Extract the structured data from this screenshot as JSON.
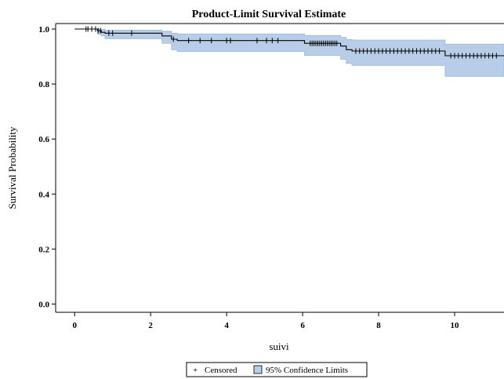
{
  "chart_data": {
    "type": "line",
    "title": "Product-Limit Survival Estimate",
    "xlabel": "suivi",
    "ylabel": "Survival Probability",
    "xlim": [
      -0.5,
      11.3
    ],
    "ylim": [
      -0.03,
      1.02
    ],
    "xticks": [
      "0",
      "2",
      "4",
      "6",
      "8",
      "10"
    ],
    "yticks": [
      "0.0",
      "0.2",
      "0.4",
      "0.6",
      "0.8",
      "1.0"
    ],
    "legend": {
      "position": "bottom",
      "entries": [
        "Censored",
        "95% Confidence Limits"
      ]
    },
    "colors": {
      "band": "#b7cde8",
      "band_edge": "#9fb9dc",
      "line": "#000000",
      "frame": "#000000"
    },
    "survival_steps": [
      [
        0,
        1.0
      ],
      [
        0.6,
        0.994
      ],
      [
        0.7,
        0.988
      ],
      [
        0.8,
        0.985
      ],
      [
        2.3,
        0.975
      ],
      [
        2.55,
        0.963
      ],
      [
        2.7,
        0.958
      ],
      [
        6.05,
        0.948
      ],
      [
        7.0,
        0.938
      ],
      [
        7.15,
        0.925
      ],
      [
        7.3,
        0.92
      ],
      [
        9.75,
        0.903
      ],
      [
        11.3,
        0.903
      ]
    ],
    "ci_lower": [
      [
        0,
        1.0
      ],
      [
        0.6,
        0.982
      ],
      [
        0.7,
        0.975
      ],
      [
        0.8,
        0.965
      ],
      [
        2.3,
        0.948
      ],
      [
        2.55,
        0.925
      ],
      [
        2.7,
        0.918
      ],
      [
        6.05,
        0.904
      ],
      [
        7.0,
        0.89
      ],
      [
        7.15,
        0.875
      ],
      [
        7.3,
        0.868
      ],
      [
        9.75,
        0.828
      ],
      [
        11.3,
        0.828
      ]
    ],
    "ci_upper": [
      [
        0,
        1.0
      ],
      [
        0.6,
        1.0
      ],
      [
        0.7,
        0.999
      ],
      [
        0.8,
        0.996
      ],
      [
        2.3,
        0.992
      ],
      [
        2.55,
        0.985
      ],
      [
        2.7,
        0.982
      ],
      [
        6.05,
        0.977
      ],
      [
        7.0,
        0.97
      ],
      [
        7.15,
        0.962
      ],
      [
        7.3,
        0.96
      ],
      [
        9.75,
        0.945
      ],
      [
        11.3,
        0.945
      ]
    ],
    "censored_times": [
      0.3,
      0.35,
      0.45,
      0.55,
      0.62,
      0.68,
      0.9,
      1.0,
      1.5,
      2.6,
      3.0,
      3.3,
      3.6,
      4.0,
      4.1,
      4.8,
      5.05,
      5.2,
      5.35,
      6.2,
      6.25,
      6.3,
      6.35,
      6.4,
      6.45,
      6.5,
      6.55,
      6.6,
      6.65,
      6.7,
      6.75,
      6.8,
      6.85,
      6.9,
      7.4,
      7.5,
      7.6,
      7.7,
      7.8,
      7.9,
      8.0,
      8.1,
      8.2,
      8.3,
      8.4,
      8.5,
      8.6,
      8.7,
      8.8,
      8.9,
      9.0,
      9.1,
      9.2,
      9.3,
      9.4,
      9.5,
      9.6,
      9.9,
      10.0,
      10.1,
      10.2,
      10.3,
      10.4,
      10.5,
      10.6,
      10.7,
      10.8,
      10.9,
      11.0,
      11.1
    ]
  }
}
